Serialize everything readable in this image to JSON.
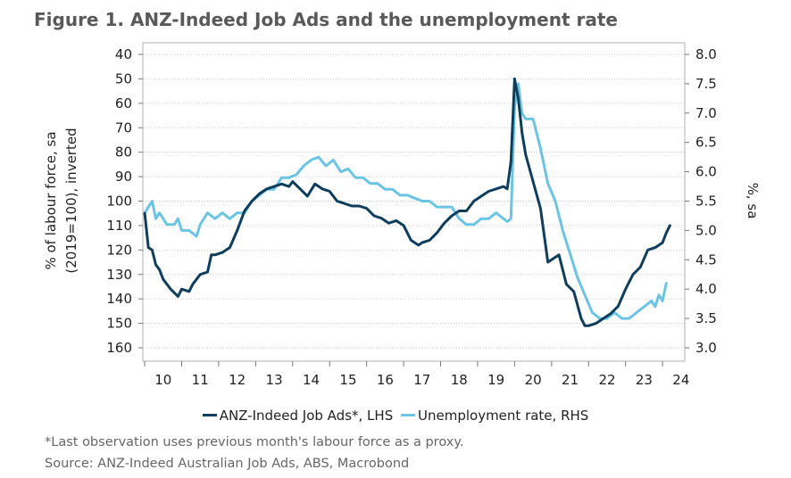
{
  "title": "Figure 1. ANZ-Indeed Job Ads and the unemployment rate",
  "legend": [
    {
      "label": "ANZ-Indeed Job Ads*, LHS",
      "color": "#0f3d5c"
    },
    {
      "label": "Unemployment rate, RHS",
      "color": "#6cc4e4"
    }
  ],
  "footnote": "*Last observation uses previous month's labour force as a proxy.",
  "source": "Source: ANZ-Indeed Australian Job Ads, ABS, Macrobond",
  "chart_data": {
    "type": "line",
    "x_ticks": [
      "10",
      "11",
      "12",
      "13",
      "14",
      "15",
      "16",
      "17",
      "18",
      "19",
      "20",
      "21",
      "22",
      "23",
      "24"
    ],
    "x_range": [
      2009.95,
      2024.6
    ],
    "left_axis": {
      "label_line1": "% of labour force, sa",
      "label_line2": "(2019=100), inverted",
      "range": [
        40,
        160
      ],
      "inverted": true,
      "ticks": [
        "40",
        "50",
        "60",
        "70",
        "80",
        "90",
        "100",
        "110",
        "120",
        "130",
        "140",
        "150",
        "160"
      ]
    },
    "right_axis": {
      "label": "%, sa",
      "range": [
        3.0,
        8.0
      ],
      "ticks": [
        "3.0",
        "3.5",
        "4.0",
        "4.5",
        "5.0",
        "5.5",
        "6.0",
        "6.5",
        "7.0",
        "7.5",
        "8.0"
      ]
    },
    "series": [
      {
        "name": "ANZ-Indeed Job Ads*, LHS",
        "axis": "left",
        "color": "#0f3d5c",
        "x": [
          2010.0,
          2010.1,
          2010.2,
          2010.3,
          2010.4,
          2010.5,
          2010.7,
          2010.9,
          2011.0,
          2011.2,
          2011.3,
          2011.5,
          2011.7,
          2011.8,
          2011.9,
          2012.1,
          2012.3,
          2012.5,
          2012.7,
          2012.9,
          2013.1,
          2013.3,
          2013.5,
          2013.7,
          2013.9,
          2014.0,
          2014.2,
          2014.4,
          2014.6,
          2014.8,
          2015.0,
          2015.2,
          2015.4,
          2015.6,
          2015.8,
          2016.0,
          2016.2,
          2016.4,
          2016.6,
          2016.8,
          2017.0,
          2017.2,
          2017.4,
          2017.5,
          2017.7,
          2017.9,
          2018.1,
          2018.3,
          2018.5,
          2018.7,
          2018.9,
          2019.1,
          2019.3,
          2019.5,
          2019.7,
          2019.8,
          2019.9,
          2020.0,
          2020.1,
          2020.2,
          2020.3,
          2020.5,
          2020.7,
          2020.9,
          2021.0,
          2021.2,
          2021.4,
          2021.6,
          2021.8,
          2021.9,
          2022.0,
          2022.2,
          2022.4,
          2022.6,
          2022.8,
          2023.0,
          2023.2,
          2023.4,
          2023.6,
          2023.8,
          2023.9,
          2024.0,
          2024.1,
          2024.2
        ],
        "y": [
          105,
          119,
          120,
          126,
          128,
          132,
          136,
          139,
          136,
          137,
          134,
          130,
          129,
          122,
          122,
          121,
          119,
          112,
          104,
          100,
          97,
          95,
          94,
          93,
          94,
          92,
          95,
          98,
          93,
          95,
          96,
          100,
          101,
          102,
          102,
          103,
          106,
          107,
          109,
          108,
          110,
          116,
          118,
          117,
          116,
          113,
          109,
          106,
          104,
          104,
          100,
          98,
          96,
          95,
          94,
          95,
          84,
          50,
          58,
          72,
          81,
          92,
          103,
          125,
          124,
          122,
          134,
          137,
          148,
          151,
          151,
          150,
          148,
          146,
          143,
          136,
          130,
          127,
          120,
          119,
          118,
          117,
          113,
          110
        ]
      },
      {
        "name": "Unemployment rate, RHS",
        "axis": "right",
        "color": "#6cc4e4",
        "x": [
          2010.0,
          2010.1,
          2010.2,
          2010.3,
          2010.4,
          2010.5,
          2010.6,
          2010.8,
          2010.9,
          2011.0,
          2011.2,
          2011.4,
          2011.5,
          2011.7,
          2011.9,
          2012.1,
          2012.3,
          2012.5,
          2012.7,
          2012.9,
          2013.1,
          2013.3,
          2013.5,
          2013.7,
          2013.9,
          2014.1,
          2014.3,
          2014.5,
          2014.7,
          2014.9,
          2015.1,
          2015.3,
          2015.5,
          2015.7,
          2015.9,
          2016.1,
          2016.3,
          2016.5,
          2016.7,
          2016.9,
          2017.1,
          2017.3,
          2017.5,
          2017.7,
          2017.9,
          2018.1,
          2018.3,
          2018.5,
          2018.7,
          2018.9,
          2019.1,
          2019.3,
          2019.5,
          2019.7,
          2019.8,
          2019.9,
          2020.0,
          2020.1,
          2020.2,
          2020.3,
          2020.5,
          2020.7,
          2020.9,
          2021.1,
          2021.3,
          2021.5,
          2021.7,
          2021.9,
          2022.1,
          2022.3,
          2022.5,
          2022.7,
          2022.9,
          2023.1,
          2023.3,
          2023.5,
          2023.7,
          2023.8,
          2023.9,
          2024.0,
          2024.1
        ],
        "y": [
          5.3,
          5.4,
          5.5,
          5.2,
          5.3,
          5.2,
          5.1,
          5.1,
          5.2,
          5.0,
          5.0,
          4.9,
          5.1,
          5.3,
          5.2,
          5.3,
          5.2,
          5.3,
          5.3,
          5.5,
          5.6,
          5.7,
          5.7,
          5.9,
          5.9,
          5.95,
          6.1,
          6.2,
          6.25,
          6.1,
          6.2,
          6.0,
          6.05,
          5.9,
          5.9,
          5.8,
          5.8,
          5.7,
          5.7,
          5.6,
          5.6,
          5.55,
          5.5,
          5.5,
          5.4,
          5.4,
          5.4,
          5.2,
          5.1,
          5.1,
          5.2,
          5.2,
          5.3,
          5.2,
          5.15,
          5.2,
          7.1,
          7.5,
          7.0,
          6.9,
          6.9,
          6.4,
          5.8,
          5.5,
          5.0,
          4.6,
          4.2,
          3.9,
          3.6,
          3.5,
          3.5,
          3.6,
          3.5,
          3.5,
          3.6,
          3.7,
          3.8,
          3.7,
          3.9,
          3.8,
          4.1
        ]
      }
    ]
  }
}
